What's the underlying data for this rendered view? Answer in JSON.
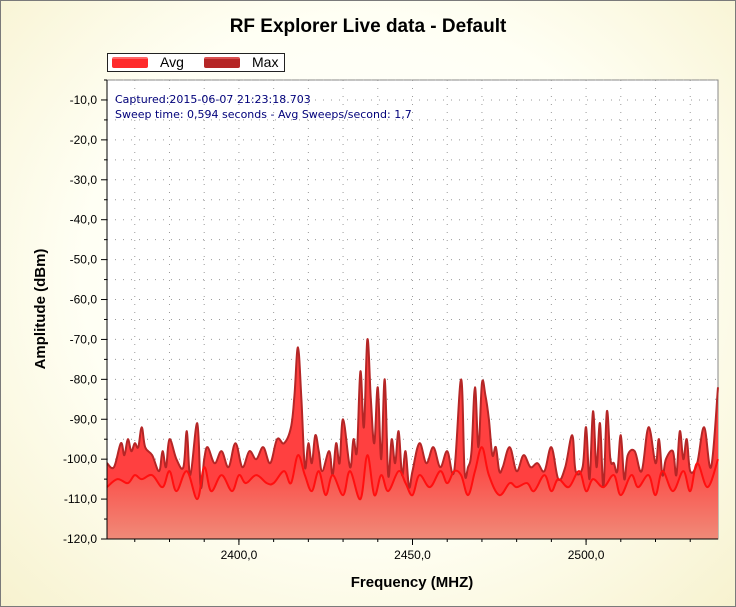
{
  "window": {
    "title": "RF Explorer Live data - Default"
  },
  "info": {
    "captured": "Captured:2015-06-07 21:23:18.703",
    "sweep": "Sweep time: 0,594 seconds - Avg Sweeps/second: 1,7"
  },
  "colors": {
    "avg": "#ff1010",
    "max": "#b52626",
    "fill_top": "#ff3f3f",
    "fill_bottom": "#f08070"
  },
  "chart_data": {
    "type": "area",
    "title": "RF Explorer Live data - Default",
    "xlabel": "Frequency (MHZ)",
    "ylabel": "Amplitude (dBm)",
    "xlim": [
      2362,
      2538
    ],
    "ylim": [
      -120,
      -5
    ],
    "grid": true,
    "legend": "top-left",
    "x_ticks": [
      "2400,0",
      "2450,0",
      "2500,0"
    ],
    "x_tick_values": [
      2400,
      2450,
      2500
    ],
    "y_ticks": [
      "-10,0",
      "-20,0",
      "-30,0",
      "-40,0",
      "-50,0",
      "-60,0",
      "-70,0",
      "-80,0",
      "-90,0",
      "-100,0",
      "-110,0",
      "-120,0"
    ],
    "y_tick_values": [
      -10,
      -20,
      -30,
      -40,
      -50,
      -60,
      -70,
      -80,
      -90,
      -100,
      -110,
      -120
    ],
    "series": [
      {
        "name": "Avg",
        "x": [
          2362,
          2365,
          2368,
          2370,
          2372,
          2375,
          2378,
          2380,
          2382,
          2385,
          2388,
          2390,
          2392,
          2395,
          2398,
          2400,
          2402,
          2405,
          2408,
          2410,
          2413,
          2415,
          2417,
          2419,
          2421,
          2423,
          2425,
          2427,
          2430,
          2432,
          2435,
          2437,
          2439,
          2441,
          2443,
          2446,
          2448,
          2450,
          2452,
          2455,
          2458,
          2460,
          2462,
          2464,
          2466,
          2468,
          2470,
          2472,
          2475,
          2478,
          2480,
          2483,
          2485,
          2488,
          2490,
          2492,
          2495,
          2498,
          2500,
          2502,
          2505,
          2508,
          2510,
          2513,
          2515,
          2518,
          2520,
          2522,
          2525,
          2528,
          2530,
          2532,
          2535,
          2538
        ],
        "values": [
          -107,
          -105,
          -106,
          -104,
          -105,
          -104,
          -107,
          -103,
          -108,
          -103,
          -110,
          -102,
          -108,
          -104,
          -108,
          -104,
          -106,
          -104,
          -106,
          -106,
          -103,
          -106,
          -99,
          -104,
          -108,
          -103,
          -109,
          -104,
          -109,
          -103,
          -110,
          -99,
          -109,
          -104,
          -108,
          -103,
          -106,
          -109,
          -104,
          -107,
          -103,
          -106,
          -103,
          -104,
          -109,
          -103,
          -97,
          -104,
          -109,
          -106,
          -107,
          -106,
          -108,
          -104,
          -108,
          -105,
          -107,
          -103,
          -108,
          -105,
          -107,
          -104,
          -109,
          -104,
          -107,
          -104,
          -109,
          -103,
          -108,
          -103,
          -108,
          -101,
          -107,
          -100
        ]
      },
      {
        "name": "Max",
        "x": [
          2362,
          2364,
          2366,
          2367,
          2368,
          2369,
          2370,
          2371,
          2372,
          2373,
          2375,
          2377,
          2378,
          2379,
          2380,
          2382,
          2384,
          2385,
          2386,
          2388,
          2389,
          2390,
          2391,
          2393,
          2395,
          2397,
          2399,
          2401,
          2403,
          2405,
          2407,
          2409,
          2411,
          2413,
          2415,
          2416,
          2417,
          2418,
          2419,
          2420,
          2421,
          2422,
          2423,
          2424,
          2426,
          2427,
          2428,
          2429,
          2430,
          2432,
          2433,
          2434,
          2435,
          2436,
          2437,
          2438,
          2439,
          2440,
          2441,
          2442,
          2443,
          2444,
          2445,
          2446,
          2447,
          2448,
          2449,
          2450,
          2452,
          2454,
          2456,
          2458,
          2460,
          2462,
          2464,
          2465,
          2466,
          2467,
          2468,
          2469,
          2470,
          2471,
          2472,
          2473,
          2474,
          2475,
          2476,
          2478,
          2480,
          2482,
          2484,
          2486,
          2488,
          2490,
          2492,
          2494,
          2496,
          2497,
          2499,
          2500,
          2501,
          2502,
          2503,
          2504,
          2505,
          2506,
          2507,
          2508,
          2509,
          2510,
          2511,
          2512,
          2514,
          2516,
          2518,
          2520,
          2521,
          2522,
          2523,
          2525,
          2526,
          2527,
          2528,
          2529,
          2530,
          2532,
          2534,
          2536,
          2538
        ],
        "values": [
          -101,
          -102,
          -96,
          -99,
          -95,
          -98,
          -96,
          -97,
          -92,
          -97,
          -99,
          -103,
          -98,
          -102,
          -95,
          -100,
          -102,
          -93,
          -104,
          -91,
          -107,
          -100,
          -97,
          -101,
          -98,
          -102,
          -96,
          -102,
          -98,
          -100,
          -97,
          -101,
          -95,
          -96,
          -92,
          -84,
          -72,
          -85,
          -102,
          -96,
          -101,
          -94,
          -98,
          -103,
          -98,
          -104,
          -96,
          -101,
          -90,
          -102,
          -95,
          -98,
          -78,
          -92,
          -70,
          -85,
          -96,
          -82,
          -100,
          -80,
          -104,
          -95,
          -101,
          -93,
          -104,
          -98,
          -107,
          -103,
          -96,
          -101,
          -97,
          -102,
          -98,
          -103,
          -80,
          -103,
          -102,
          -98,
          -82,
          -97,
          -81,
          -84,
          -90,
          -99,
          -97,
          -103,
          -102,
          -97,
          -103,
          -99,
          -102,
          -101,
          -103,
          -97,
          -105,
          -102,
          -94,
          -103,
          -102,
          -92,
          -105,
          -88,
          -102,
          -91,
          -107,
          -88,
          -100,
          -101,
          -103,
          -94,
          -105,
          -99,
          -98,
          -103,
          -92,
          -101,
          -95,
          -104,
          -100,
          -98,
          -104,
          -93,
          -100,
          -95,
          -103,
          -101,
          -92,
          -102,
          -82
        ]
      }
    ]
  }
}
